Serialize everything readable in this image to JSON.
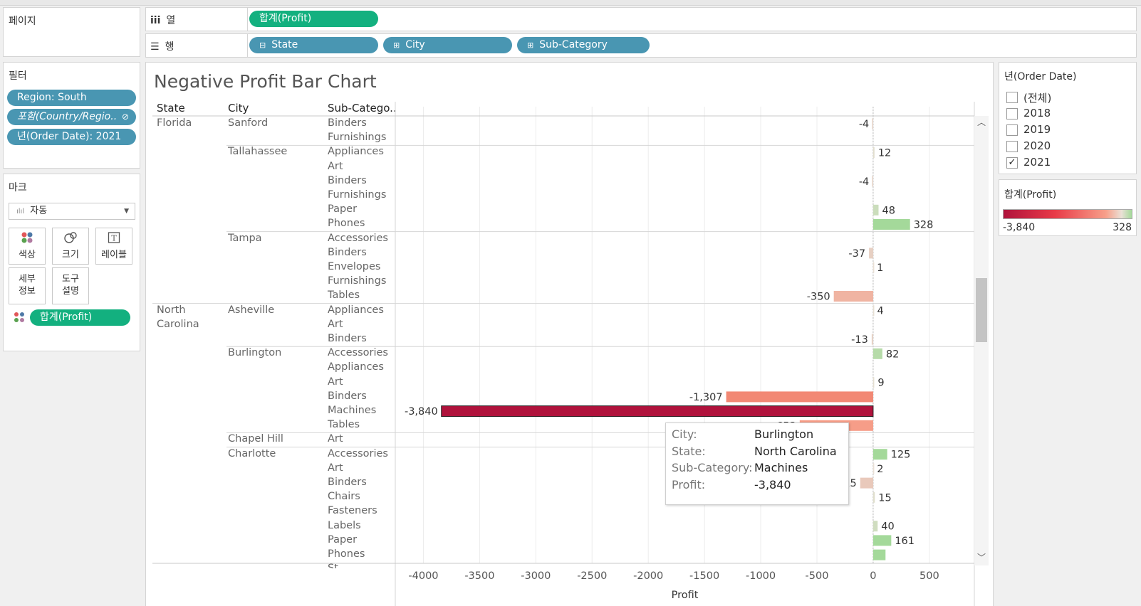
{
  "pages_panel": {
    "title": "페이지"
  },
  "shelves": {
    "columns": {
      "label": "열",
      "pills": [
        {
          "label": "합계(Profit)"
        }
      ]
    },
    "rows": {
      "label": "행",
      "pills": [
        {
          "label": "State"
        },
        {
          "label": "City"
        },
        {
          "label": "Sub-Category"
        }
      ]
    }
  },
  "filters": {
    "title": "필터",
    "items": [
      {
        "label": "Region: South"
      },
      {
        "label": "포함(Country/Regio.."
      },
      {
        "label": "년(Order Date): 2021"
      }
    ]
  },
  "marks": {
    "title": "마크",
    "type": "자동",
    "buttons": [
      {
        "label": "색상",
        "icon": "color-dots-icon"
      },
      {
        "label": "크기",
        "icon": "size-icon"
      },
      {
        "label": "레이블",
        "icon": "label-icon"
      },
      {
        "label": "세부\n정보",
        "icon": "detail-icon"
      },
      {
        "label": "도구\n설명",
        "icon": "tooltip-icon"
      }
    ],
    "encoding_pill": "합계(Profit)"
  },
  "chart": {
    "title": "Negative Profit Bar Chart",
    "headers": {
      "state": "State",
      "city": "City",
      "subcategory": "Sub-Catego.."
    },
    "states": [
      {
        "label": "Florida",
        "first_row": 0
      },
      {
        "label": "North\nCarolina",
        "first_row": 13
      }
    ],
    "cities": [
      {
        "label": "Sanford",
        "first_row": 0
      },
      {
        "label": "Tallahassee",
        "first_row": 2
      },
      {
        "label": "Tampa",
        "first_row": 8
      },
      {
        "label": "Asheville",
        "first_row": 13
      },
      {
        "label": "Burlington",
        "first_row": 16
      },
      {
        "label": "Chapel Hill",
        "first_row": 22
      },
      {
        "label": "Charlotte",
        "first_row": 23
      }
    ],
    "group_breaks": [
      2,
      8,
      13,
      16,
      22,
      23
    ],
    "state_breaks": [
      13
    ],
    "footer_row": "St..."
  },
  "chart_data": {
    "type": "bar",
    "orientation": "horizontal",
    "xlabel": "Profit",
    "xlim": [
      -4250,
      900
    ],
    "xticks": [
      -4000,
      -3500,
      -3000,
      -2500,
      -2000,
      -1500,
      -1000,
      -500,
      0,
      500
    ],
    "rows": [
      {
        "sub": "Binders",
        "value": -4,
        "label": "-4"
      },
      {
        "sub": "Furnishings",
        "value": null,
        "label": ""
      },
      {
        "sub": "Appliances",
        "value": 12,
        "label": "12"
      },
      {
        "sub": "Art",
        "value": null,
        "label": ""
      },
      {
        "sub": "Binders",
        "value": -4,
        "label": "-4"
      },
      {
        "sub": "Furnishings",
        "value": null,
        "label": ""
      },
      {
        "sub": "Paper",
        "value": 48,
        "label": "48"
      },
      {
        "sub": "Phones",
        "value": 328,
        "label": "328"
      },
      {
        "sub": "Accessories",
        "value": null,
        "label": ""
      },
      {
        "sub": "Binders",
        "value": -37,
        "label": "-37"
      },
      {
        "sub": "Envelopes",
        "value": 1,
        "label": "1"
      },
      {
        "sub": "Furnishings",
        "value": null,
        "label": ""
      },
      {
        "sub": "Tables",
        "value": -350,
        "label": "-350"
      },
      {
        "sub": "Appliances",
        "value": 4,
        "label": "4"
      },
      {
        "sub": "Art",
        "value": null,
        "label": ""
      },
      {
        "sub": "Binders",
        "value": -13,
        "label": "-13"
      },
      {
        "sub": "Accessories",
        "value": 82,
        "label": "82"
      },
      {
        "sub": "Appliances",
        "value": null,
        "label": ""
      },
      {
        "sub": "Art",
        "value": 9,
        "label": "9"
      },
      {
        "sub": "Binders",
        "value": -1307,
        "label": "-1,307"
      },
      {
        "sub": "Machines",
        "value": -3840,
        "label": "-3,840"
      },
      {
        "sub": "Tables",
        "value": -653,
        "label": "-653"
      },
      {
        "sub": "Art",
        "value": null,
        "label": ""
      },
      {
        "sub": "Accessories",
        "value": 125,
        "label": "125"
      },
      {
        "sub": "Art",
        "value": 2,
        "label": "2"
      },
      {
        "sub": "Binders",
        "value": -115,
        "label": "-115"
      },
      {
        "sub": "Chairs",
        "value": 15,
        "label": "15"
      },
      {
        "sub": "Fasteners",
        "value": null,
        "label": ""
      },
      {
        "sub": "Labels",
        "value": 40,
        "label": "40"
      },
      {
        "sub": "Paper",
        "value": 161,
        "label": "161"
      },
      {
        "sub": "Phones",
        "value": 110,
        "label": ""
      }
    ]
  },
  "tooltip": {
    "rows": [
      {
        "key": "City:",
        "value": "Burlington"
      },
      {
        "key": "State:",
        "value": "North Carolina"
      },
      {
        "key": "Sub-Category:",
        "value": "Machines"
      },
      {
        "key": "Profit:",
        "value": "-3,840"
      }
    ]
  },
  "year_filter": {
    "title": "년(Order Date)",
    "options": [
      {
        "label": "(전체)",
        "checked": false
      },
      {
        "label": "2018",
        "checked": false
      },
      {
        "label": "2019",
        "checked": false
      },
      {
        "label": "2020",
        "checked": false
      },
      {
        "label": "2021",
        "checked": true
      }
    ]
  },
  "color_legend": {
    "title": "합계(Profit)",
    "min_label": "-3,840",
    "max_label": "328"
  },
  "colors": {
    "pill_blue": "#4996b2",
    "pill_green": "#13b07f",
    "neg_dark": "#b0123c",
    "pos": "#a4d99a"
  }
}
